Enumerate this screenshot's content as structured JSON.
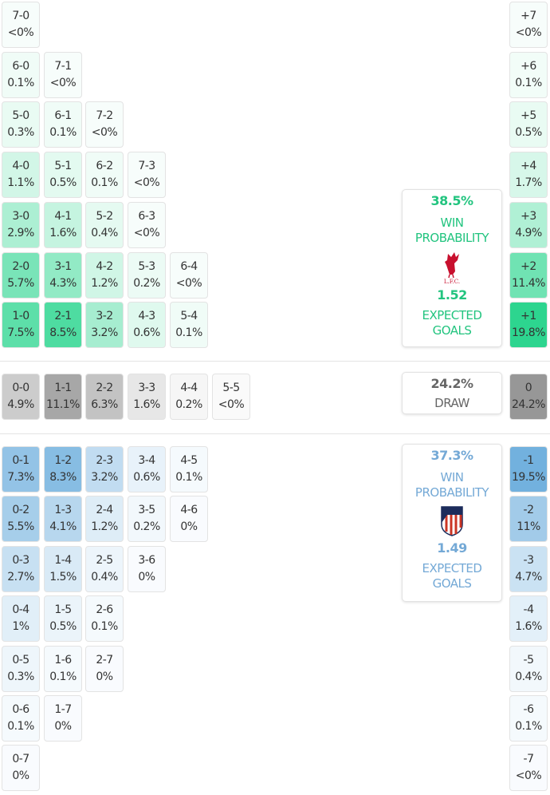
{
  "colors": {
    "home": "#2ad58e",
    "away": "#5ba4d9",
    "draw": "#8a8a8a",
    "home_text": "#22c47f",
    "away_text": "#74a9d6",
    "draw_text": "#666666"
  },
  "home_grid": [
    [
      {
        "score": "7-0",
        "pct": "<0%"
      }
    ],
    [
      {
        "score": "6-0",
        "pct": "0.1%"
      },
      {
        "score": "7-1",
        "pct": "<0%"
      }
    ],
    [
      {
        "score": "5-0",
        "pct": "0.3%"
      },
      {
        "score": "6-1",
        "pct": "0.1%"
      },
      {
        "score": "7-2",
        "pct": "<0%"
      }
    ],
    [
      {
        "score": "4-0",
        "pct": "1.1%"
      },
      {
        "score": "5-1",
        "pct": "0.5%"
      },
      {
        "score": "6-2",
        "pct": "0.1%"
      },
      {
        "score": "7-3",
        "pct": "<0%"
      }
    ],
    [
      {
        "score": "3-0",
        "pct": "2.9%"
      },
      {
        "score": "4-1",
        "pct": "1.6%"
      },
      {
        "score": "5-2",
        "pct": "0.4%"
      },
      {
        "score": "6-3",
        "pct": "<0%"
      }
    ],
    [
      {
        "score": "2-0",
        "pct": "5.7%"
      },
      {
        "score": "3-1",
        "pct": "4.3%"
      },
      {
        "score": "4-2",
        "pct": "1.2%"
      },
      {
        "score": "5-3",
        "pct": "0.2%"
      },
      {
        "score": "6-4",
        "pct": "<0%"
      }
    ],
    [
      {
        "score": "1-0",
        "pct": "7.5%"
      },
      {
        "score": "2-1",
        "pct": "8.5%"
      },
      {
        "score": "3-2",
        "pct": "3.2%"
      },
      {
        "score": "4-3",
        "pct": "0.6%"
      },
      {
        "score": "5-4",
        "pct": "0.1%"
      }
    ]
  ],
  "draw_row": [
    {
      "score": "0-0",
      "pct": "4.9%"
    },
    {
      "score": "1-1",
      "pct": "11.1%"
    },
    {
      "score": "2-2",
      "pct": "6.3%"
    },
    {
      "score": "3-3",
      "pct": "1.6%"
    },
    {
      "score": "4-4",
      "pct": "0.2%"
    },
    {
      "score": "5-5",
      "pct": "<0%"
    }
  ],
  "away_grid": [
    [
      {
        "score": "0-1",
        "pct": "7.3%"
      },
      {
        "score": "1-2",
        "pct": "8.3%"
      },
      {
        "score": "2-3",
        "pct": "3.2%"
      },
      {
        "score": "3-4",
        "pct": "0.6%"
      },
      {
        "score": "4-5",
        "pct": "0.1%"
      }
    ],
    [
      {
        "score": "0-2",
        "pct": "5.5%"
      },
      {
        "score": "1-3",
        "pct": "4.1%"
      },
      {
        "score": "2-4",
        "pct": "1.2%"
      },
      {
        "score": "3-5",
        "pct": "0.2%"
      },
      {
        "score": "4-6",
        "pct": "0%"
      }
    ],
    [
      {
        "score": "0-3",
        "pct": "2.7%"
      },
      {
        "score": "1-4",
        "pct": "1.5%"
      },
      {
        "score": "2-5",
        "pct": "0.4%"
      },
      {
        "score": "3-6",
        "pct": "0%"
      }
    ],
    [
      {
        "score": "0-4",
        "pct": "1%"
      },
      {
        "score": "1-5",
        "pct": "0.5%"
      },
      {
        "score": "2-6",
        "pct": "0.1%"
      }
    ],
    [
      {
        "score": "0-5",
        "pct": "0.3%"
      },
      {
        "score": "1-6",
        "pct": "0.1%"
      },
      {
        "score": "2-7",
        "pct": "0%"
      }
    ],
    [
      {
        "score": "0-6",
        "pct": "0.1%"
      },
      {
        "score": "1-7",
        "pct": "0%"
      }
    ],
    [
      {
        "score": "0-7",
        "pct": "0%"
      }
    ]
  ],
  "home_margins": [
    {
      "score": "+7",
      "pct": "<0%"
    },
    {
      "score": "+6",
      "pct": "0.1%"
    },
    {
      "score": "+5",
      "pct": "0.5%"
    },
    {
      "score": "+4",
      "pct": "1.7%"
    },
    {
      "score": "+3",
      "pct": "4.9%"
    },
    {
      "score": "+2",
      "pct": "11.4%"
    },
    {
      "score": "+1",
      "pct": "19.8%"
    }
  ],
  "draw_margin": {
    "score": "0",
    "pct": "24.2%"
  },
  "away_margins": [
    {
      "score": "-1",
      "pct": "19.5%"
    },
    {
      "score": "-2",
      "pct": "11%"
    },
    {
      "score": "-3",
      "pct": "4.7%"
    },
    {
      "score": "-4",
      "pct": "1.6%"
    },
    {
      "score": "-5",
      "pct": "0.4%"
    },
    {
      "score": "-6",
      "pct": "0.1%"
    },
    {
      "score": "-7",
      "pct": "<0%"
    }
  ],
  "home_summary": {
    "win_pct": "38.5%",
    "win_label_1": "WIN",
    "win_label_2": "PROBABILITY",
    "crest_text": "L.F.C.",
    "xg": "1.52",
    "xg_label_1": "EXPECTED",
    "xg_label_2": "GOALS"
  },
  "draw_summary": {
    "pct": "24.2%",
    "label": "DRAW"
  },
  "away_summary": {
    "win_pct": "37.3%",
    "win_label_1": "WIN",
    "win_label_2": "PROBABILITY",
    "xg": "1.49",
    "xg_label_1": "EXPECTED",
    "xg_label_2": "GOALS"
  }
}
